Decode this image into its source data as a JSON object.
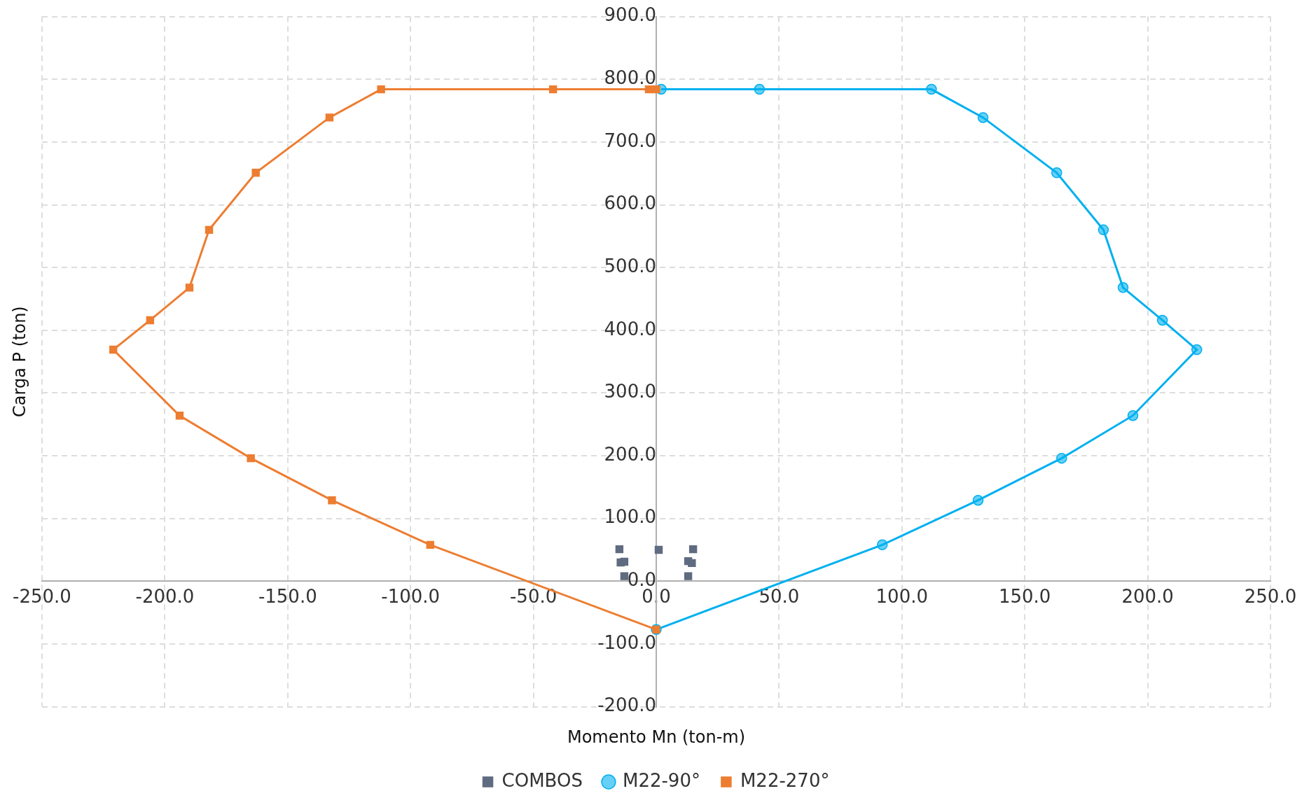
{
  "chart_data": {
    "type": "scatter",
    "xlabel": "Momento Mn (ton-m)",
    "ylabel": "Carga P (ton)",
    "xlim": [
      -250,
      250
    ],
    "xticks": [
      {
        "value": -250,
        "label": "-250.0"
      },
      {
        "value": -200,
        "label": "-200.0"
      },
      {
        "value": -150,
        "label": "-150.0"
      },
      {
        "value": -100,
        "label": "-100.0"
      },
      {
        "value": -50,
        "label": "-50.0"
      },
      {
        "value": 0,
        "label": "0.0"
      },
      {
        "value": 50,
        "label": "50.0"
      },
      {
        "value": 100,
        "label": "100.0"
      },
      {
        "value": 150,
        "label": "150.0"
      },
      {
        "value": 200,
        "label": "200.0"
      },
      {
        "value": 250,
        "label": "250.0"
      }
    ],
    "ylim": [
      -200,
      900
    ],
    "yticks": [
      {
        "value": -200,
        "label": "-200.0"
      },
      {
        "value": -100,
        "label": "-100.0"
      },
      {
        "value": 0,
        "label": "0.0"
      },
      {
        "value": 100,
        "label": "100.0"
      },
      {
        "value": 200,
        "label": "200.0"
      },
      {
        "value": 300,
        "label": "300.0"
      },
      {
        "value": 400,
        "label": "400.0"
      },
      {
        "value": 500,
        "label": "500.0"
      },
      {
        "value": 600,
        "label": "600.0"
      },
      {
        "value": 700,
        "label": "700.0"
      },
      {
        "value": 800,
        "label": "800.0"
      },
      {
        "value": 900,
        "label": "900.0"
      }
    ],
    "grid": true,
    "legend": "bottom",
    "series": [
      {
        "name": "COMBOS",
        "type": "scatter",
        "marker": "square",
        "color": "#5f6b80",
        "x": [
          -15,
          -14.5,
          -13,
          -13,
          1,
          15,
          13,
          14.5,
          13
        ],
        "values": [
          51,
          30,
          31,
          8,
          50,
          51,
          32,
          29,
          8
        ]
      },
      {
        "name": "M22-90°",
        "type": "line",
        "marker": "circle",
        "color": "#00b0f0",
        "x": [
          2,
          42,
          112,
          133,
          163,
          182,
          190,
          206,
          220,
          194,
          165,
          131,
          92,
          0
        ],
        "values": [
          784,
          784,
          784,
          739,
          651,
          560,
          468,
          416,
          369,
          264,
          196,
          129,
          58,
          -77
        ]
      },
      {
        "name": "M22-270°",
        "type": "line",
        "marker": "square",
        "color": "#ed7d31",
        "x": [
          0,
          -3,
          -42,
          -112,
          -133,
          -163,
          -182,
          -190,
          -206,
          -221,
          -194,
          -165,
          -132,
          -92,
          0
        ],
        "values": [
          784,
          784,
          784,
          784,
          739,
          651,
          560,
          468,
          416,
          369,
          264,
          196,
          129,
          58,
          -77
        ]
      }
    ]
  }
}
